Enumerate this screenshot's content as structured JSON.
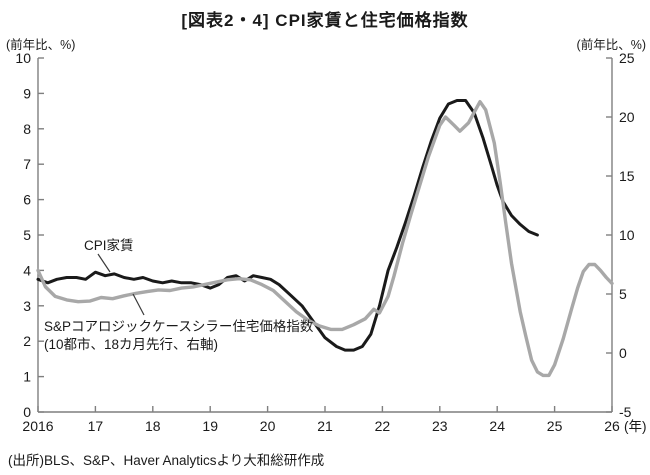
{
  "source_note": "(出所)BLS、S&P、Haver Analyticsより大和総研作成",
  "chart_data": {
    "type": "line",
    "title": "[図表2・4] CPI家賃と住宅価格指数",
    "left_axis": {
      "label": "(前年比、%)",
      "min": 0,
      "max": 10,
      "ticks": [
        0,
        1,
        2,
        3,
        4,
        5,
        6,
        7,
        8,
        9,
        10
      ]
    },
    "right_axis": {
      "label": "(前年比、%)",
      "min": -5,
      "max": 25,
      "ticks": [
        -5,
        0,
        5,
        10,
        15,
        20,
        25
      ]
    },
    "x_axis": {
      "min": 2016,
      "max": 2026,
      "tick_values": [
        2016,
        2017,
        2018,
        2019,
        2020,
        2021,
        2022,
        2023,
        2024,
        2025,
        2026
      ],
      "tick_labels": [
        "2016",
        "17",
        "18",
        "19",
        "20",
        "21",
        "22",
        "23",
        "24",
        "25",
        "26"
      ],
      "unit_label": "(年)"
    },
    "grid": "off",
    "legend": "inline-annotations",
    "series": [
      {
        "name": "CPI家賃",
        "axis": "left",
        "color": "#1a1a1a",
        "width": 3,
        "points": [
          [
            2016.0,
            3.75
          ],
          [
            2016.17,
            3.65
          ],
          [
            2016.33,
            3.75
          ],
          [
            2016.5,
            3.8
          ],
          [
            2016.67,
            3.8
          ],
          [
            2016.83,
            3.75
          ],
          [
            2017.0,
            3.95
          ],
          [
            2017.17,
            3.85
          ],
          [
            2017.33,
            3.9
          ],
          [
            2017.5,
            3.8
          ],
          [
            2017.67,
            3.75
          ],
          [
            2017.83,
            3.8
          ],
          [
            2018.0,
            3.7
          ],
          [
            2018.17,
            3.65
          ],
          [
            2018.33,
            3.7
          ],
          [
            2018.5,
            3.65
          ],
          [
            2018.67,
            3.65
          ],
          [
            2018.83,
            3.6
          ],
          [
            2019.0,
            3.5
          ],
          [
            2019.15,
            3.6
          ],
          [
            2019.3,
            3.8
          ],
          [
            2019.45,
            3.85
          ],
          [
            2019.6,
            3.7
          ],
          [
            2019.75,
            3.85
          ],
          [
            2019.9,
            3.8
          ],
          [
            2020.05,
            3.75
          ],
          [
            2020.2,
            3.6
          ],
          [
            2020.4,
            3.3
          ],
          [
            2020.6,
            3.0
          ],
          [
            2020.8,
            2.55
          ],
          [
            2021.0,
            2.1
          ],
          [
            2021.2,
            1.85
          ],
          [
            2021.35,
            1.75
          ],
          [
            2021.5,
            1.75
          ],
          [
            2021.65,
            1.85
          ],
          [
            2021.8,
            2.2
          ],
          [
            2021.95,
            3.0
          ],
          [
            2022.1,
            4.0
          ],
          [
            2022.25,
            4.65
          ],
          [
            2022.4,
            5.35
          ],
          [
            2022.55,
            6.1
          ],
          [
            2022.7,
            6.9
          ],
          [
            2022.85,
            7.65
          ],
          [
            2023.0,
            8.3
          ],
          [
            2023.15,
            8.7
          ],
          [
            2023.3,
            8.8
          ],
          [
            2023.45,
            8.8
          ],
          [
            2023.6,
            8.45
          ],
          [
            2023.75,
            7.75
          ],
          [
            2023.9,
            6.95
          ],
          [
            2024.0,
            6.4
          ],
          [
            2024.1,
            5.95
          ],
          [
            2024.25,
            5.55
          ],
          [
            2024.4,
            5.3
          ],
          [
            2024.55,
            5.1
          ],
          [
            2024.7,
            5.0
          ]
        ]
      },
      {
        "name": "S&Pコアロジックケースシラー住宅価格指数(10都市、18カ月先行、右軸)",
        "axis": "right",
        "color": "#a8a8a8",
        "width": 3.4,
        "points": [
          [
            2016.0,
            7.0
          ],
          [
            2016.13,
            5.6
          ],
          [
            2016.3,
            4.8
          ],
          [
            2016.5,
            4.5
          ],
          [
            2016.7,
            4.35
          ],
          [
            2016.9,
            4.4
          ],
          [
            2017.1,
            4.7
          ],
          [
            2017.3,
            4.6
          ],
          [
            2017.5,
            4.85
          ],
          [
            2017.7,
            5.05
          ],
          [
            2017.9,
            5.2
          ],
          [
            2018.1,
            5.35
          ],
          [
            2018.3,
            5.3
          ],
          [
            2018.5,
            5.5
          ],
          [
            2018.7,
            5.6
          ],
          [
            2018.9,
            5.8
          ],
          [
            2019.1,
            6.0
          ],
          [
            2019.3,
            6.2
          ],
          [
            2019.5,
            6.3
          ],
          [
            2019.7,
            6.2
          ],
          [
            2019.9,
            5.8
          ],
          [
            2020.1,
            5.3
          ],
          [
            2020.3,
            4.4
          ],
          [
            2020.5,
            3.5
          ],
          [
            2020.7,
            2.8
          ],
          [
            2020.9,
            2.3
          ],
          [
            2021.1,
            2.0
          ],
          [
            2021.3,
            2.0
          ],
          [
            2021.5,
            2.4
          ],
          [
            2021.7,
            2.9
          ],
          [
            2021.85,
            3.7
          ],
          [
            2021.95,
            3.4
          ],
          [
            2022.1,
            4.8
          ],
          [
            2022.2,
            6.5
          ],
          [
            2022.35,
            9.3
          ],
          [
            2022.5,
            11.8
          ],
          [
            2022.65,
            14.2
          ],
          [
            2022.8,
            16.6
          ],
          [
            2023.0,
            19.3
          ],
          [
            2023.1,
            20.0
          ],
          [
            2023.25,
            19.3
          ],
          [
            2023.35,
            18.8
          ],
          [
            2023.5,
            19.5
          ],
          [
            2023.6,
            20.4
          ],
          [
            2023.7,
            21.3
          ],
          [
            2023.8,
            20.6
          ],
          [
            2023.95,
            17.8
          ],
          [
            2024.05,
            14.5
          ],
          [
            2024.15,
            11.0
          ],
          [
            2024.25,
            7.6
          ],
          [
            2024.4,
            3.5
          ],
          [
            2024.5,
            1.4
          ],
          [
            2024.6,
            -0.6
          ],
          [
            2024.7,
            -1.6
          ],
          [
            2024.8,
            -1.9
          ],
          [
            2024.9,
            -1.9
          ],
          [
            2025.0,
            -1.0
          ],
          [
            2025.15,
            1.2
          ],
          [
            2025.3,
            3.8
          ],
          [
            2025.4,
            5.5
          ],
          [
            2025.5,
            6.9
          ],
          [
            2025.6,
            7.5
          ],
          [
            2025.7,
            7.5
          ],
          [
            2025.8,
            7.0
          ],
          [
            2025.9,
            6.4
          ],
          [
            2026.0,
            5.9
          ]
        ]
      }
    ],
    "annotations": [
      {
        "id": "cpi-rent-label",
        "lines": [
          "CPI家賃"
        ],
        "px": {
          "x": 84,
          "y": 250
        },
        "leader": [
          98,
          254,
          110,
          272
        ]
      },
      {
        "id": "case-shiller-label",
        "lines": [
          "S&Pコアロジックケースシラー住宅価格指数",
          "(10都市、18カ月先行、右軸)"
        ],
        "px": {
          "x": 44,
          "y": 331
        },
        "leader": [
          133,
          294,
          144,
          315
        ]
      }
    ],
    "axis_color": "#7f7f7f",
    "text_color": "#1a1a1a"
  }
}
